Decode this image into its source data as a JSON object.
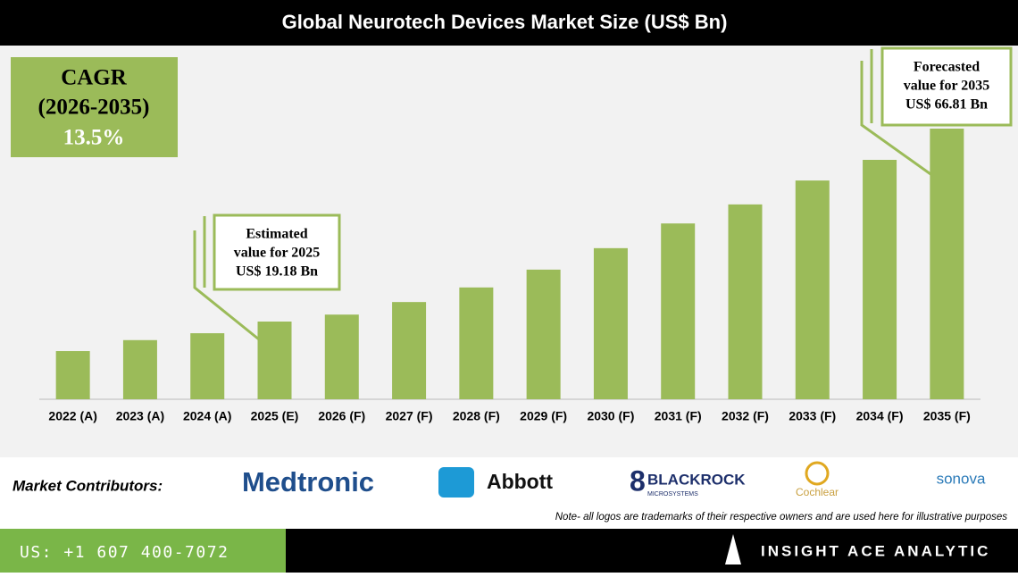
{
  "chart_data": {
    "type": "bar",
    "title": "Global Neurotech Devices Market Size (US$ Bn)",
    "categories": [
      "2022 (A)",
      "2023 (A)",
      "2024 (A)",
      "2025 (E)",
      "2026 (F)",
      "2027 (F)",
      "2028 (F)",
      "2029 (F)",
      "2030 (F)",
      "2031 (F)",
      "2032 (F)",
      "2033 (F)",
      "2034 (F)",
      "2035 (F)"
    ],
    "values": [
      11.9,
      14.6,
      16.3,
      19.18,
      20.9,
      24.0,
      27.6,
      32.0,
      37.3,
      43.4,
      48.1,
      54.0,
      59.1,
      66.81
    ],
    "color": "#9bbb59",
    "cagr_box": [
      "CAGR",
      "(2026-2035)",
      "13.5%"
    ],
    "annotations": [
      [
        "Estimated",
        "value for 2025",
        "US$ 19.18 Bn"
      ],
      [
        "Forecasted",
        "value for 2035",
        "US$ 66.81 Bn"
      ]
    ]
  },
  "contributors": {
    "label": "Market Contributors:",
    "logos": [
      "Medtronic",
      "Abbott",
      "BLACKROCK",
      "MICROSYSTEMS",
      "Cochlear",
      "sonova"
    ],
    "note": "Note- all logos are trademarks of their respective owners and are used here for illustrative purposes"
  },
  "footer": {
    "phone": "US: +1 607 400-7072",
    "brand": "INSIGHT ACE ANALYTIC"
  }
}
